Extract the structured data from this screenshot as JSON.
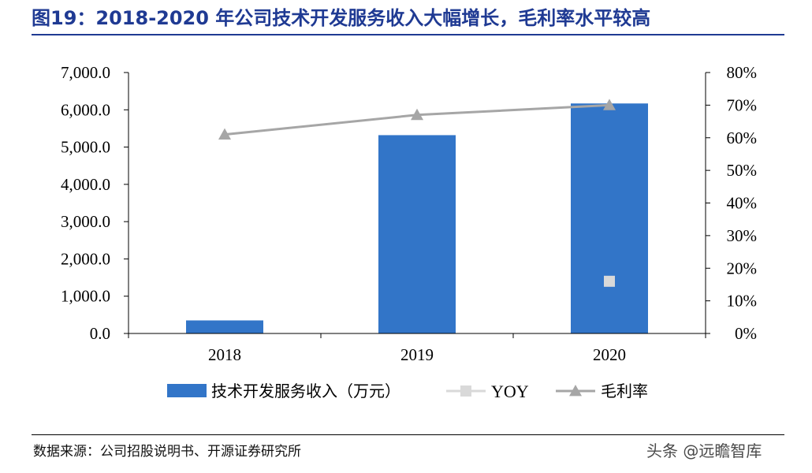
{
  "header": {
    "title": "图19：2018-2020 年公司技术开发服务收入大幅增长，毛利率水平较高"
  },
  "footer": {
    "source": "数据来源：公司招股说明书、开源证券研究所",
    "watermark": "头条 @远瞻智库"
  },
  "chart_data": {
    "type": "bar",
    "categories": [
      "2018",
      "2019",
      "2020"
    ],
    "series": [
      {
        "name": "技术开发服务收入（万元）",
        "kind": "bar",
        "axis": "left",
        "color": "#3275c8",
        "values": [
          350,
          5320,
          6170
        ]
      },
      {
        "name": "YOY",
        "kind": "marker",
        "axis": "right",
        "color": "#d9d9d9",
        "values": [
          null,
          null,
          0.16
        ]
      },
      {
        "name": "毛利率",
        "kind": "line",
        "axis": "right",
        "color": "#a6a6a6",
        "values": [
          0.61,
          0.67,
          0.7
        ]
      }
    ],
    "left_axis": {
      "ylim": [
        0,
        7000
      ],
      "ticks": [
        "0.0",
        "1,000.0",
        "2,000.0",
        "3,000.0",
        "4,000.0",
        "5,000.0",
        "6,000.0",
        "7,000.0"
      ]
    },
    "right_axis": {
      "ylim": [
        0,
        0.8
      ],
      "ticks": [
        "0%",
        "10%",
        "20%",
        "30%",
        "40%",
        "50%",
        "60%",
        "70%",
        "80%"
      ]
    },
    "legend_position": "bottom",
    "grid": false
  }
}
